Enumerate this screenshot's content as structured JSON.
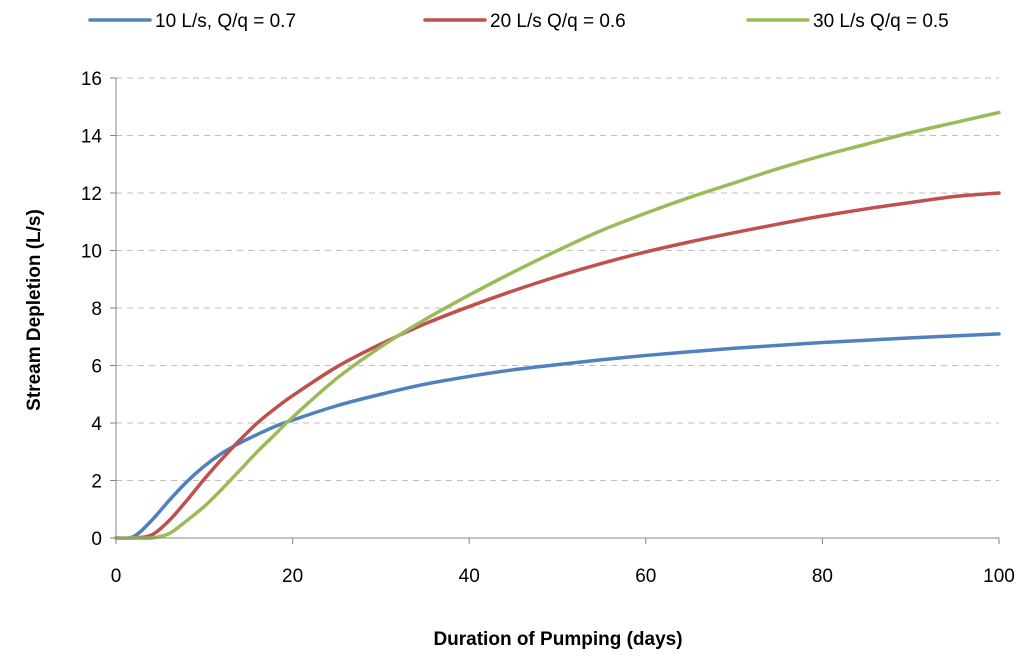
{
  "chart_data": {
    "type": "line",
    "title": "",
    "xlabel": "Duration of Pumping (days)",
    "ylabel": "Stream Depletion (L/s)",
    "xlim": [
      0,
      100
    ],
    "ylim": [
      0,
      16
    ],
    "xticks": [
      0,
      20,
      40,
      60,
      80,
      100
    ],
    "yticks": [
      0,
      2,
      4,
      6,
      8,
      10,
      12,
      14,
      16
    ],
    "grid": "horizontal-dashed",
    "legend_position": "top",
    "x": [
      0,
      2,
      4,
      6,
      8,
      10,
      12,
      14,
      16,
      18,
      20,
      25,
      30,
      35,
      40,
      45,
      50,
      55,
      60,
      65,
      70,
      75,
      80,
      85,
      90,
      95,
      100
    ],
    "series": [
      {
        "name": "10 L/s, Q/q = 0.7",
        "color": "#4F81BD",
        "values": [
          0,
          0.05,
          0.6,
          1.3,
          1.95,
          2.5,
          2.95,
          3.3,
          3.6,
          3.88,
          4.1,
          4.6,
          5.0,
          5.35,
          5.62,
          5.85,
          6.03,
          6.2,
          6.35,
          6.48,
          6.6,
          6.7,
          6.8,
          6.88,
          6.96,
          7.03,
          7.1
        ]
      },
      {
        "name": "20 L/s Q/q = 0.6",
        "color": "#C0504D",
        "values": [
          0,
          0,
          0.1,
          0.6,
          1.3,
          2.05,
          2.75,
          3.4,
          4.0,
          4.5,
          4.95,
          5.95,
          6.75,
          7.45,
          8.05,
          8.6,
          9.1,
          9.55,
          9.95,
          10.3,
          10.62,
          10.92,
          11.2,
          11.45,
          11.67,
          11.88,
          12.0
        ]
      },
      {
        "name": "30 L/s Q/q = 0.5",
        "color": "#9BBB59",
        "values": [
          0,
          0,
          0,
          0.15,
          0.6,
          1.1,
          1.7,
          2.35,
          3.0,
          3.6,
          4.2,
          5.55,
          6.65,
          7.6,
          8.45,
          9.25,
          10.0,
          10.7,
          11.3,
          11.85,
          12.35,
          12.85,
          13.3,
          13.7,
          14.1,
          14.45,
          14.8
        ]
      }
    ]
  }
}
